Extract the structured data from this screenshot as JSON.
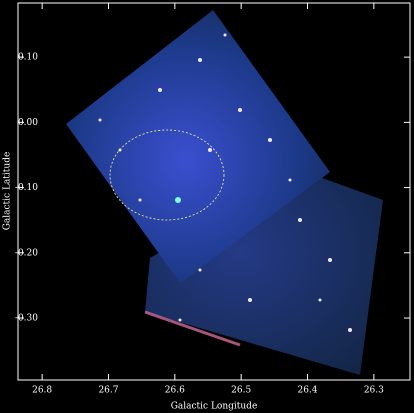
{
  "chart_data": {
    "type": "image",
    "x_label": "Galactic Longitude",
    "y_label": "Galactic Latitude",
    "xlim": [
      26.8364,
      26.2455
    ],
    "ylim": [
      -0.395,
      0.183
    ],
    "xticks": [
      26.8,
      26.7,
      26.6,
      26.5,
      26.4,
      26.3
    ],
    "yticks": [
      {
        "value": 0.1,
        "label": "0.10"
      },
      {
        "value": 0.0,
        "label": "0.00"
      },
      {
        "value": -0.1,
        "label": "-0.10"
      },
      {
        "value": -0.2,
        "label": "-0.20"
      },
      {
        "value": -0.3,
        "label": "-0.30"
      }
    ]
  }
}
